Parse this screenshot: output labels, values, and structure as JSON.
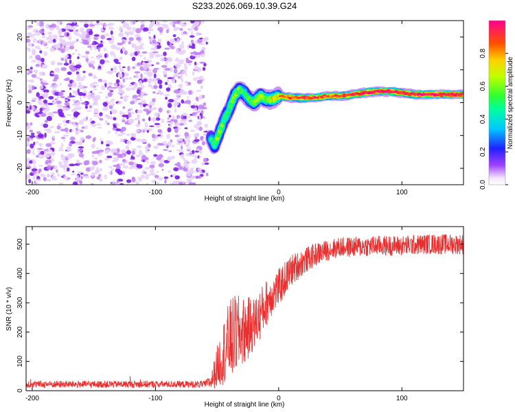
{
  "title": "S233.2026.069.10.39.G24",
  "chart_data": [
    {
      "type": "heatmap",
      "name": "spectrogram",
      "xlabel": "Height of straight line (km)",
      "ylabel": "Frequency (Hz)",
      "xlim": [
        -205,
        150
      ],
      "ylim": [
        -25,
        25
      ],
      "xticks": [
        -200,
        -100,
        0,
        100
      ],
      "yticks": [
        -20,
        -10,
        0,
        10,
        20
      ],
      "colorbar": {
        "label": "Normalized spectral amplitude",
        "range": [
          0,
          1
        ],
        "ticks": [
          0.0,
          0.2,
          0.4,
          0.6,
          0.8
        ]
      },
      "noise_region_x": [
        -205,
        -58
      ],
      "ridge": {
        "x": [
          -55,
          -52,
          -48,
          -44,
          -40,
          -36,
          -32,
          -28,
          -24,
          -20,
          -15,
          -10,
          -5,
          0,
          10,
          20,
          30,
          40,
          50,
          60,
          70,
          80,
          90,
          100,
          110,
          120,
          130,
          140,
          150
        ],
        "freq": [
          -11,
          -13,
          -9,
          -5,
          -2,
          2,
          4,
          3,
          1,
          0,
          2,
          1,
          1,
          2,
          1.5,
          1.5,
          1.5,
          2,
          2,
          2.5,
          3,
          3.5,
          3.5,
          3,
          2.5,
          2.5,
          2.5,
          2.5,
          2.5
        ],
        "amplitude": [
          0.5,
          0.6,
          0.7,
          0.6,
          0.6,
          0.7,
          0.7,
          0.6,
          0.6,
          0.7,
          0.8,
          0.7,
          0.8,
          0.85,
          0.9,
          0.95,
          0.95,
          0.9,
          0.9,
          0.95,
          1.0,
          1.0,
          1.0,
          0.95,
          0.95,
          1.0,
          1.0,
          1.0,
          1.0
        ]
      }
    },
    {
      "type": "line",
      "name": "snr",
      "xlabel": "Height of straight line (km)",
      "ylabel": "SNR (10 * v/v)",
      "xlim": [
        -205,
        150
      ],
      "ylim": [
        0,
        560
      ],
      "xticks": [
        -200,
        -100,
        0,
        100
      ],
      "yticks": [
        0,
        100,
        200,
        300,
        400,
        500
      ],
      "color": "#e83030",
      "envelope": {
        "x": [
          -205,
          -60,
          -55,
          -50,
          -45,
          -40,
          -35,
          -30,
          -25,
          -20,
          -15,
          -10,
          -5,
          0,
          5,
          10,
          20,
          30,
          40,
          50,
          60,
          80,
          100,
          120,
          150
        ],
        "mean": [
          22,
          22,
          30,
          80,
          130,
          170,
          190,
          200,
          210,
          230,
          260,
          300,
          330,
          350,
          380,
          410,
          440,
          465,
          480,
          490,
          490,
          495,
          495,
          500,
          500
        ],
        "spread": [
          12,
          12,
          25,
          70,
          110,
          140,
          140,
          120,
          110,
          90,
          90,
          80,
          70,
          65,
          60,
          55,
          45,
          40,
          35,
          35,
          35,
          35,
          35,
          35,
          35
        ]
      }
    }
  ]
}
